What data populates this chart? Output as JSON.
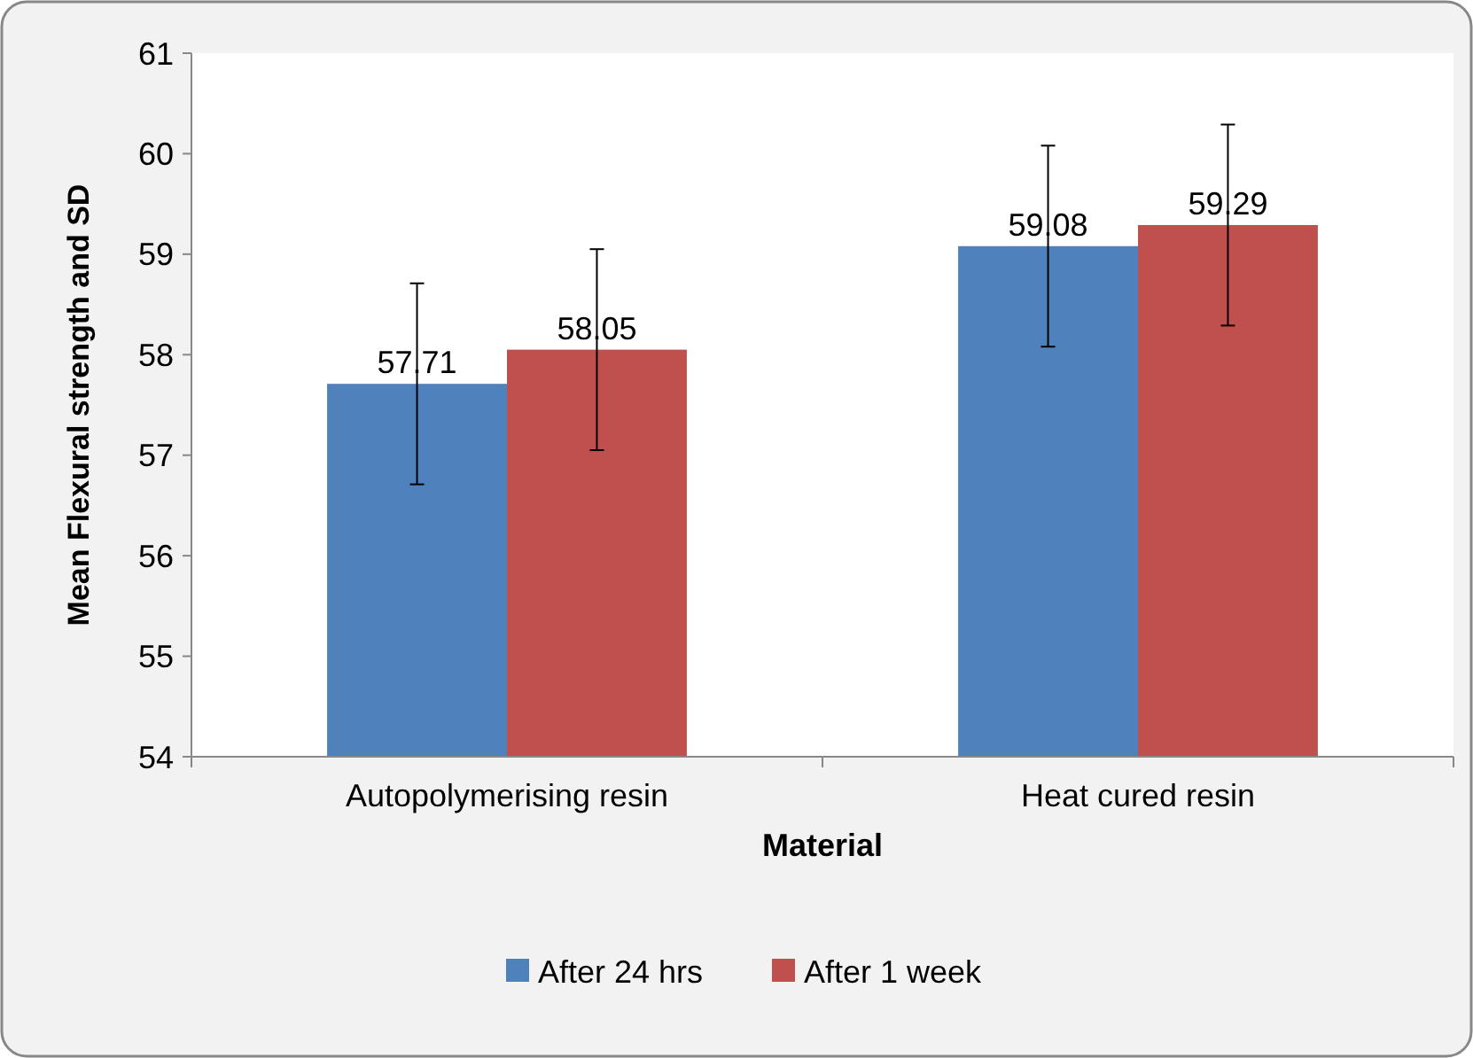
{
  "chart_data": {
    "type": "bar",
    "xlabel": "Material",
    "ylabel": "Mean Flexural strength and SD",
    "categories": [
      "Autopolymerising resin",
      "Heat cured resin"
    ],
    "series": [
      {
        "name": "After 24 hrs",
        "color": "#4f81bd",
        "values": [
          57.71,
          59.08
        ],
        "errors": [
          1,
          1
        ]
      },
      {
        "name": "After 1 week",
        "color": "#c0504d",
        "values": [
          58.05,
          59.29
        ],
        "errors": [
          1,
          1
        ]
      }
    ],
    "ylim": [
      54,
      61
    ],
    "yticks": [
      54,
      55,
      56,
      57,
      58,
      59,
      60,
      61
    ],
    "data_labels": true,
    "legend": "bottom"
  }
}
